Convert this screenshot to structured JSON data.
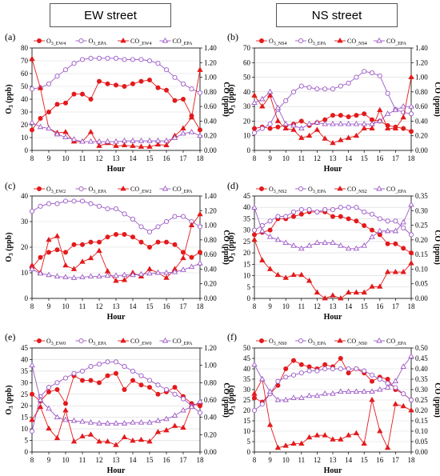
{
  "headers": {
    "left": "EW street",
    "right": "NS street"
  },
  "colors": {
    "measured": "#e31a1c",
    "epa": "#9b59c6",
    "axis": "#000000",
    "grid": "#d9d9d9"
  },
  "chart_data": [
    {
      "type": "line",
      "panel_label": "(a)",
      "x": [
        8,
        8.5,
        9,
        9.5,
        10,
        10.5,
        11,
        11.5,
        12,
        12.5,
        13,
        13.5,
        14,
        14.5,
        15,
        15.5,
        16,
        16.5,
        17,
        17.5,
        18
      ],
      "xlabel": "Hour",
      "ylabel_left": "O3 (ppb)",
      "ylabel_right": "CO (ppm)",
      "ylim_left": [
        0,
        80
      ],
      "yticks_left": [
        0,
        10,
        20,
        30,
        40,
        50,
        60,
        70,
        80
      ],
      "ylim_right": [
        0,
        1.4
      ],
      "yticks_right": [
        "0.00",
        "0.20",
        "0.40",
        "0.60",
        "0.80",
        "1.00",
        "1.20",
        "1.40"
      ],
      "xticks": [
        8,
        9,
        10,
        11,
        12,
        13,
        14,
        15,
        16,
        17,
        18
      ],
      "legend": [
        {
          "sub": "3_EW4",
          "kind": "o3_meas"
        },
        {
          "sub": "3_EPA",
          "kind": "o3_epa"
        },
        {
          "sub": "_EW4",
          "kind": "co_meas"
        },
        {
          "sub": "_EPA",
          "kind": "co_epa"
        }
      ],
      "series": [
        {
          "kind": "o3_meas",
          "axis": "left",
          "values": [
            16,
            25,
            30,
            36,
            37,
            44,
            44,
            40,
            54,
            52,
            51,
            50,
            52,
            54,
            55,
            49,
            47,
            39,
            40,
            27,
            16
          ]
        },
        {
          "kind": "o3_epa",
          "axis": "left",
          "values": [
            48,
            49,
            52,
            58,
            63,
            68,
            71,
            72,
            72,
            72,
            72,
            71,
            71,
            71,
            70,
            68,
            63,
            57,
            52,
            48,
            45
          ]
        },
        {
          "kind": "co_meas",
          "axis": "right",
          "values": [
            1.25,
            0.85,
            0.3,
            0.24,
            0.25,
            0.12,
            0.12,
            0.25,
            0.06,
            0.1,
            0.06,
            0.07,
            0.06,
            0.05,
            0.05,
            0.08,
            0.07,
            0.2,
            0.3,
            0.45,
            1.1
          ]
        },
        {
          "kind": "co_epa",
          "axis": "right",
          "values": [
            0.38,
            0.32,
            0.3,
            0.22,
            0.18,
            0.15,
            0.12,
            0.12,
            0.12,
            0.12,
            0.12,
            0.13,
            0.13,
            0.13,
            0.13,
            0.13,
            0.13,
            0.17,
            0.23,
            0.25,
            0.2
          ]
        }
      ]
    },
    {
      "type": "line",
      "panel_label": "(b)",
      "x": [
        8,
        8.5,
        9,
        9.5,
        10,
        10.5,
        11,
        11.5,
        12,
        12.5,
        13,
        13.5,
        14,
        14.5,
        15,
        15.5,
        16,
        16.5,
        17,
        17.5,
        18
      ],
      "xlabel": "Hour",
      "ylabel_left": "O3 (ppb)",
      "ylabel_right": "CO (ppm)",
      "ylim_left": [
        0,
        70
      ],
      "yticks_left": [
        0,
        10,
        20,
        30,
        40,
        50,
        60,
        70
      ],
      "ylim_right": [
        0,
        1.4
      ],
      "yticks_right": [
        "0.00",
        "0.20",
        "0.40",
        "0.60",
        "0.80",
        "1.00",
        "1.20",
        "1.40"
      ],
      "xticks": [
        8,
        9,
        10,
        11,
        12,
        13,
        14,
        15,
        16,
        17,
        18
      ],
      "legend": [
        {
          "sub": "3_NS4",
          "kind": "o3_meas"
        },
        {
          "sub": "3_EPA",
          "kind": "o3_epa"
        },
        {
          "sub": "_NS4",
          "kind": "co_meas"
        },
        {
          "sub": "_EPA",
          "kind": "co_epa"
        }
      ],
      "series": [
        {
          "kind": "o3_meas",
          "axis": "left",
          "values": [
            15,
            16,
            15,
            16,
            17,
            18,
            20,
            17,
            19,
            21,
            24,
            24,
            23,
            24,
            25,
            21,
            20,
            17,
            16,
            15,
            13
          ]
        },
        {
          "kind": "o3_epa",
          "axis": "left",
          "values": [
            12,
            15,
            18,
            28,
            34,
            40,
            44,
            43,
            42,
            42,
            42,
            44,
            46,
            50,
            54,
            53,
            51,
            39,
            28,
            26,
            25
          ]
        },
        {
          "kind": "co_meas",
          "axis": "right",
          "values": [
            0.75,
            0.6,
            0.75,
            0.4,
            0.3,
            0.28,
            0.17,
            0.2,
            0.28,
            0.16,
            0.1,
            0.14,
            0.17,
            0.2,
            0.3,
            0.3,
            0.55,
            0.3,
            0.3,
            0.45,
            1.0
          ]
        },
        {
          "kind": "co_epa",
          "axis": "right",
          "values": [
            0.65,
            0.7,
            0.8,
            0.58,
            0.36,
            0.34,
            0.3,
            0.36,
            0.38,
            0.36,
            0.36,
            0.36,
            0.36,
            0.36,
            0.36,
            0.36,
            0.4,
            0.5,
            0.55,
            0.6,
            0.6
          ]
        }
      ]
    },
    {
      "type": "line",
      "panel_label": "(c)",
      "x": [
        8,
        8.5,
        9,
        9.5,
        10,
        10.5,
        11,
        11.5,
        12,
        12.5,
        13,
        13.5,
        14,
        14.5,
        15,
        15.5,
        16,
        16.5,
        17,
        17.5,
        18
      ],
      "xlabel": "Hour",
      "ylabel_left": "O3 (ppb)",
      "ylabel_right": "CO (ppm)",
      "ylim_left": [
        0,
        40
      ],
      "yticks_left": [
        0,
        10,
        20,
        30,
        40
      ],
      "ylim_right": [
        0,
        1.4
      ],
      "yticks_right": [
        "0.00",
        "0.20",
        "0.40",
        "0.60",
        "0.80",
        "1.00",
        "1.20",
        "1.40"
      ],
      "xticks": [
        8,
        9,
        10,
        11,
        12,
        13,
        14,
        15,
        16,
        17,
        18
      ],
      "legend": [
        {
          "sub": "3_EW2",
          "kind": "o3_meas"
        },
        {
          "sub": "3_EPA",
          "kind": "o3_epa"
        },
        {
          "sub": "_EW2",
          "kind": "co_meas"
        },
        {
          "sub": "_EPA",
          "kind": "co_epa"
        }
      ],
      "series": [
        {
          "kind": "o3_meas",
          "axis": "left",
          "values": [
            12,
            16,
            18,
            19,
            18,
            21,
            21,
            22,
            22,
            24,
            25,
            25,
            24,
            22,
            20,
            22,
            22,
            21,
            18,
            16,
            18
          ]
        },
        {
          "kind": "o3_epa",
          "axis": "left",
          "values": [
            34,
            36,
            37,
            37,
            38,
            38,
            38,
            37,
            36,
            35,
            35,
            33,
            31,
            28,
            26,
            28,
            30,
            32,
            32,
            30,
            28
          ]
        },
        {
          "kind": "co_meas",
          "axis": "right",
          "values": [
            0.45,
            0.35,
            0.8,
            0.85,
            0.45,
            0.4,
            0.5,
            0.55,
            0.65,
            0.37,
            0.24,
            0.25,
            0.35,
            0.3,
            0.4,
            0.35,
            0.28,
            0.4,
            0.55,
            1.0,
            1.15
          ]
        },
        {
          "kind": "co_epa",
          "axis": "right",
          "values": [
            0.4,
            0.34,
            0.32,
            0.3,
            0.29,
            0.28,
            0.29,
            0.3,
            0.3,
            0.31,
            0.31,
            0.32,
            0.32,
            0.33,
            0.34,
            0.35,
            0.35,
            0.36,
            0.39,
            0.43,
            0.48
          ]
        }
      ]
    },
    {
      "type": "line",
      "panel_label": "(d)",
      "x": [
        8,
        8.5,
        9,
        9.5,
        10,
        10.5,
        11,
        11.5,
        12,
        12.5,
        13,
        13.5,
        14,
        14.5,
        15,
        15.5,
        16,
        16.5,
        17,
        17.5,
        18
      ],
      "xlabel": "Hour",
      "ylabel_left": "O3 (ppb)",
      "ylabel_right": "CO (ppm)",
      "ylim_left": [
        0,
        45
      ],
      "yticks_left": [
        0,
        5,
        10,
        15,
        20,
        25,
        30,
        35,
        40,
        45
      ],
      "ylim_right": [
        0,
        0.35
      ],
      "yticks_right": [
        "0.00",
        "0.05",
        "0.10",
        "0.15",
        "0.20",
        "0.25",
        "0.30",
        "0.35"
      ],
      "xticks": [
        8,
        9,
        10,
        11,
        12,
        13,
        14,
        15,
        16,
        17,
        18
      ],
      "legend": [
        {
          "sub": "3_NS2",
          "kind": "o3_meas"
        },
        {
          "sub": "3_EPA",
          "kind": "o3_epa"
        },
        {
          "sub": "_NS2",
          "kind": "co_meas"
        },
        {
          "sub": "_EPA",
          "kind": "co_epa"
        }
      ],
      "series": [
        {
          "kind": "o3_meas",
          "axis": "left",
          "values": [
            28,
            29,
            30,
            35,
            35,
            36,
            37,
            38,
            38,
            38,
            36,
            36,
            35,
            34,
            32,
            30,
            28,
            24,
            24,
            22,
            20
          ]
        },
        {
          "kind": "o3_epa",
          "axis": "left",
          "values": [
            30,
            32,
            34,
            36,
            36,
            38,
            39,
            39,
            38,
            39,
            39,
            40,
            40,
            40,
            38,
            37,
            35,
            34,
            34,
            31,
            28
          ]
        },
        {
          "kind": "co_meas",
          "axis": "right",
          "values": [
            0.2,
            0.13,
            0.1,
            0.08,
            0.07,
            0.08,
            0.08,
            0.06,
            0.02,
            0.0,
            0.01,
            0.0,
            0.02,
            0.02,
            0.02,
            0.04,
            0.04,
            0.09,
            0.09,
            0.09,
            0.12
          ]
        },
        {
          "kind": "co_epa",
          "axis": "right",
          "values": [
            0.31,
            0.23,
            0.21,
            0.2,
            0.19,
            0.18,
            0.17,
            0.18,
            0.19,
            0.19,
            0.19,
            0.18,
            0.17,
            0.17,
            0.18,
            0.21,
            0.23,
            0.23,
            0.23,
            0.26,
            0.32
          ]
        }
      ]
    },
    {
      "type": "line",
      "panel_label": "(e)",
      "x": [
        8,
        8.5,
        9,
        9.5,
        10,
        10.5,
        11,
        11.5,
        12,
        12.5,
        13,
        13.5,
        14,
        14.5,
        15,
        15.5,
        16,
        16.5,
        17,
        17.5,
        18
      ],
      "xlabel": "Hour",
      "ylabel_left": "O3 (ppb)",
      "ylabel_right": "CO (ppm)",
      "ylim_left": [
        0,
        45
      ],
      "yticks_left": [
        0,
        5,
        10,
        15,
        20,
        25,
        30,
        35,
        40,
        45
      ],
      "ylim_right": [
        0,
        1.2
      ],
      "yticks_right": [
        "0.00",
        "0.20",
        "0.40",
        "0.60",
        "0.80",
        "1.00",
        "1.20"
      ],
      "xticks": [
        8,
        9,
        10,
        11,
        12,
        13,
        14,
        15,
        16,
        17,
        18
      ],
      "legend": [
        {
          "sub": "3_EW0",
          "kind": "o3_meas"
        },
        {
          "sub": "3_EPA",
          "kind": "o3_epa"
        },
        {
          "sub": "_EW0",
          "kind": "co_meas"
        },
        {
          "sub": "_EPA",
          "kind": "co_epa"
        }
      ],
      "series": [
        {
          "kind": "o3_meas",
          "axis": "left",
          "values": [
            25,
            22,
            26,
            27,
            21,
            33,
            31,
            31,
            30,
            33,
            34,
            27,
            31,
            29,
            28,
            25,
            26,
            28,
            24,
            21,
            20
          ]
        },
        {
          "kind": "o3_epa",
          "axis": "left",
          "values": [
            9,
            24,
            28,
            30,
            32,
            34,
            35,
            37,
            38,
            39,
            39,
            37,
            35,
            33,
            31,
            29,
            27,
            25,
            23,
            20,
            17
          ]
        },
        {
          "kind": "co_meas",
          "axis": "right",
          "values": [
            0.37,
            0.52,
            0.27,
            0.16,
            0.48,
            0.12,
            0.18,
            0.2,
            0.12,
            0.12,
            0.08,
            0.17,
            0.13,
            0.14,
            0.12,
            0.23,
            0.25,
            0.3,
            0.28,
            0.53,
            0.57
          ]
        },
        {
          "kind": "co_epa",
          "axis": "right",
          "values": [
            1.0,
            0.6,
            0.5,
            0.4,
            0.37,
            0.36,
            0.35,
            0.34,
            0.33,
            0.33,
            0.33,
            0.33,
            0.34,
            0.34,
            0.34,
            0.36,
            0.38,
            0.42,
            0.48,
            0.52,
            0.58
          ]
        }
      ]
    },
    {
      "type": "line",
      "panel_label": "(f)",
      "x": [
        8,
        8.5,
        9,
        9.5,
        10,
        10.5,
        11,
        11.5,
        12,
        12.5,
        13,
        13.5,
        14,
        14.5,
        15,
        15.5,
        16,
        16.5,
        17,
        17.5,
        18
      ],
      "xlabel": "Hour",
      "ylabel_left": "O3 (ppb)",
      "ylabel_right": "CO (ppm)",
      "ylim_left": [
        0,
        50
      ],
      "yticks_left": [
        0,
        5,
        10,
        15,
        20,
        25,
        30,
        35,
        40,
        45,
        50
      ],
      "ylim_right": [
        0,
        0.5
      ],
      "yticks_right": [
        "0.00",
        "0.05",
        "0.10",
        "0.15",
        "0.20",
        "0.25",
        "0.30",
        "0.35",
        "0.40",
        "0.45",
        "0.50"
      ],
      "xticks": [
        8,
        9,
        10,
        11,
        12,
        13,
        14,
        15,
        16,
        17,
        18
      ],
      "legend": [
        {
          "sub": "3_NS0",
          "kind": "o3_meas"
        },
        {
          "sub": "3_EPA",
          "kind": "o3_epa"
        },
        {
          "sub": "_NS0",
          "kind": "co_meas"
        },
        {
          "sub": "_EPA",
          "kind": "co_epa"
        }
      ],
      "series": [
        {
          "kind": "o3_meas",
          "axis": "left",
          "values": [
            26,
            24,
            28,
            32,
            40,
            44,
            42,
            41,
            40,
            42,
            41,
            45,
            38,
            40,
            38,
            34,
            36,
            35,
            30,
            28,
            25
          ]
        },
        {
          "kind": "o3_epa",
          "axis": "left",
          "values": [
            20,
            23,
            28,
            34,
            36,
            37,
            38,
            39,
            39,
            40,
            40,
            40,
            40,
            40,
            39,
            37,
            35,
            33,
            31,
            28,
            25
          ]
        },
        {
          "kind": "co_meas",
          "axis": "right",
          "values": [
            0.28,
            0.35,
            0.13,
            0.02,
            0.03,
            0.04,
            0.04,
            0.07,
            0.08,
            0.08,
            0.06,
            0.06,
            0.08,
            0.09,
            0.04,
            0.25,
            0.1,
            0.02,
            0.23,
            0.22,
            0.2
          ]
        },
        {
          "kind": "co_epa",
          "axis": "right",
          "values": [
            0.42,
            0.35,
            0.29,
            0.25,
            0.25,
            0.26,
            0.26,
            0.27,
            0.27,
            0.28,
            0.28,
            0.29,
            0.29,
            0.29,
            0.29,
            0.29,
            0.3,
            0.31,
            0.34,
            0.41,
            0.46
          ]
        }
      ]
    }
  ]
}
